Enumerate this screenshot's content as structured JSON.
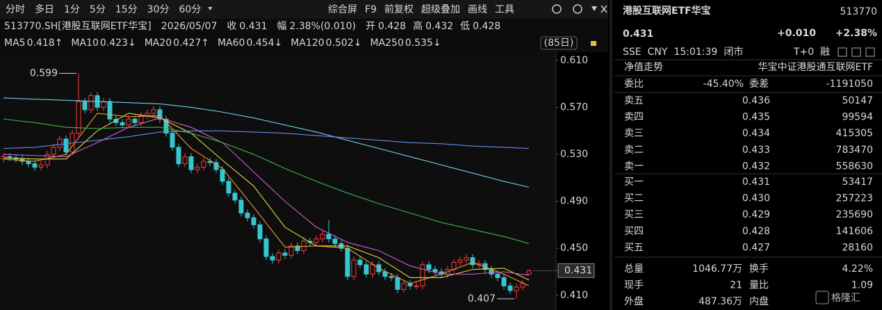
{
  "toolbar": {
    "periods": [
      "分时",
      "多日",
      "1分",
      "5分",
      "15分",
      "30分",
      "60分"
    ],
    "tools": [
      "综合屏",
      "F9",
      "前复权",
      "超级叠加",
      "画线",
      "工具"
    ]
  },
  "info": {
    "symbol": "513770.SH[港股互联网ETF华宝]",
    "date": "2026/05/07",
    "close_label": "收",
    "close": "0.431",
    "change_label": "幅",
    "change": "2.38%(0.010)",
    "open_label": "开",
    "open": "0.428",
    "high_label": "高",
    "high": "0.432",
    "low_label": "低",
    "low": "0.428"
  },
  "chart_data": {
    "type": "candlestick",
    "period_label": "(85日)",
    "ylim": [
      0.401,
      0.62
    ],
    "yticks": [
      {
        "value": 0.61,
        "label": "0.610"
      },
      {
        "value": 0.57,
        "label": "0.570"
      },
      {
        "value": 0.53,
        "label": "0.530"
      },
      {
        "value": 0.49,
        "label": "0.490"
      },
      {
        "value": 0.45,
        "label": "0.450"
      },
      {
        "value": 0.41,
        "label": "0.410"
      }
    ],
    "up_color": "#ff3a3a",
    "down_color": "#35c6d0",
    "open": [
      0.526,
      0.528,
      0.527,
      0.526,
      0.524,
      0.522,
      0.519,
      0.521,
      0.53,
      0.536,
      0.543,
      0.532,
      0.548,
      0.575,
      0.568,
      0.58,
      0.57,
      0.575,
      0.56,
      0.557,
      0.555,
      0.56,
      0.557,
      0.563,
      0.565,
      0.568,
      0.56,
      0.548,
      0.536,
      0.522,
      0.528,
      0.517,
      0.519,
      0.524,
      0.523,
      0.517,
      0.507,
      0.497,
      0.491,
      0.48,
      0.476,
      0.47,
      0.458,
      0.443,
      0.44,
      0.446,
      0.444,
      0.452,
      0.448,
      0.456,
      0.455,
      0.458,
      0.462,
      0.458,
      0.454,
      0.45,
      0.426,
      0.44,
      0.436,
      0.428,
      0.436,
      0.43,
      0.426,
      0.425,
      0.415,
      0.42,
      0.418,
      0.418,
      0.436,
      0.432,
      0.43,
      0.428,
      0.432,
      0.438,
      0.44,
      0.442,
      0.436,
      0.437,
      0.432,
      0.428,
      0.425,
      0.418,
      0.414,
      0.417,
      0.428
    ],
    "high": [
      0.531,
      0.531,
      0.53,
      0.529,
      0.527,
      0.525,
      0.524,
      0.533,
      0.539,
      0.546,
      0.546,
      0.551,
      0.599,
      0.578,
      0.583,
      0.583,
      0.578,
      0.578,
      0.563,
      0.56,
      0.563,
      0.563,
      0.566,
      0.568,
      0.571,
      0.571,
      0.563,
      0.551,
      0.539,
      0.531,
      0.531,
      0.522,
      0.527,
      0.527,
      0.526,
      0.52,
      0.51,
      0.5,
      0.494,
      0.483,
      0.479,
      0.473,
      0.461,
      0.446,
      0.449,
      0.449,
      0.455,
      0.455,
      0.459,
      0.459,
      0.461,
      0.465,
      0.474,
      0.461,
      0.457,
      0.453,
      0.443,
      0.443,
      0.439,
      0.439,
      0.439,
      0.433,
      0.429,
      0.428,
      0.423,
      0.423,
      0.421,
      0.439,
      0.439,
      0.435,
      0.433,
      0.435,
      0.441,
      0.443,
      0.445,
      0.445,
      0.44,
      0.44,
      0.435,
      0.431,
      0.428,
      0.421,
      0.42,
      0.423,
      0.432
    ],
    "low": [
      0.523,
      0.524,
      0.523,
      0.521,
      0.519,
      0.516,
      0.516,
      0.518,
      0.527,
      0.533,
      0.529,
      0.529,
      0.545,
      0.565,
      0.565,
      0.567,
      0.567,
      0.557,
      0.554,
      0.552,
      0.552,
      0.554,
      0.554,
      0.56,
      0.562,
      0.557,
      0.545,
      0.533,
      0.519,
      0.519,
      0.514,
      0.514,
      0.516,
      0.52,
      0.514,
      0.504,
      0.494,
      0.488,
      0.477,
      0.473,
      0.467,
      0.455,
      0.44,
      0.437,
      0.437,
      0.441,
      0.441,
      0.445,
      0.445,
      0.452,
      0.452,
      0.455,
      0.455,
      0.451,
      0.447,
      0.423,
      0.423,
      0.433,
      0.425,
      0.425,
      0.427,
      0.423,
      0.422,
      0.412,
      0.412,
      0.415,
      0.415,
      0.415,
      0.429,
      0.427,
      0.425,
      0.425,
      0.429,
      0.435,
      0.437,
      0.433,
      0.433,
      0.429,
      0.425,
      0.422,
      0.415,
      0.411,
      0.407,
      0.414,
      0.428
    ],
    "close": [
      0.528,
      0.527,
      0.526,
      0.524,
      0.522,
      0.519,
      0.521,
      0.53,
      0.536,
      0.543,
      0.532,
      0.548,
      0.575,
      0.568,
      0.58,
      0.57,
      0.575,
      0.56,
      0.557,
      0.555,
      0.56,
      0.557,
      0.563,
      0.565,
      0.568,
      0.56,
      0.548,
      0.536,
      0.522,
      0.528,
      0.517,
      0.519,
      0.524,
      0.523,
      0.517,
      0.507,
      0.497,
      0.491,
      0.48,
      0.476,
      0.47,
      0.458,
      0.443,
      0.44,
      0.446,
      0.444,
      0.452,
      0.448,
      0.456,
      0.455,
      0.458,
      0.462,
      0.458,
      0.454,
      0.45,
      0.426,
      0.44,
      0.436,
      0.428,
      0.436,
      0.43,
      0.426,
      0.425,
      0.415,
      0.42,
      0.418,
      0.418,
      0.436,
      0.432,
      0.43,
      0.428,
      0.432,
      0.438,
      0.44,
      0.442,
      0.436,
      0.437,
      0.432,
      0.428,
      0.425,
      0.418,
      0.414,
      0.417,
      0.42,
      0.431
    ],
    "ma_x": [
      0,
      5,
      10,
      15,
      20,
      25,
      30,
      35,
      40,
      45,
      50,
      55,
      60,
      65,
      70,
      75,
      80,
      84
    ],
    "series": [
      {
        "name": "MA5",
        "color": "#f0a030",
        "values": [
          0.526,
          0.524,
          0.53,
          0.565,
          0.562,
          0.563,
          0.535,
          0.518,
          0.485,
          0.451,
          0.452,
          0.45,
          0.433,
          0.42,
          0.428,
          0.438,
          0.428,
          0.418
        ],
        "last": {
          "value": 0.418,
          "label": "0.418↑"
        }
      },
      {
        "name": "MA10",
        "color": "#e8d840",
        "values": [
          0.527,
          0.526,
          0.526,
          0.55,
          0.565,
          0.561,
          0.548,
          0.525,
          0.503,
          0.468,
          0.452,
          0.452,
          0.442,
          0.425,
          0.425,
          0.432,
          0.433,
          0.423
        ],
        "last": {
          "value": 0.423,
          "label": "0.423↓"
        }
      },
      {
        "name": "MA20",
        "color": "#d65fd6",
        "values": [
          0.53,
          0.529,
          0.528,
          0.54,
          0.553,
          0.561,
          0.553,
          0.54,
          0.515,
          0.49,
          0.468,
          0.455,
          0.448,
          0.435,
          0.428,
          0.428,
          0.43,
          0.427
        ],
        "last": {
          "value": 0.427,
          "label": "0.427↑"
        }
      },
      {
        "name": "MA60",
        "color": "#3cb54a",
        "values": [
          0.56,
          0.557,
          0.553,
          0.552,
          0.553,
          0.553,
          0.548,
          0.54,
          0.53,
          0.518,
          0.507,
          0.497,
          0.488,
          0.48,
          0.472,
          0.466,
          0.46,
          0.454
        ],
        "last": {
          "value": 0.454,
          "label": "0.454↓"
        }
      },
      {
        "name": "MA120",
        "color": "#6fd0e8",
        "values": [
          0.578,
          0.577,
          0.576,
          0.575,
          0.574,
          0.573,
          0.57,
          0.566,
          0.561,
          0.555,
          0.549,
          0.542,
          0.535,
          0.528,
          0.521,
          0.514,
          0.507,
          0.502
        ],
        "last": {
          "value": 0.502,
          "label": "0.502↓"
        }
      },
      {
        "name": "MA250",
        "color": "#6a8cf0",
        "values": [
          0.535,
          0.536,
          0.539,
          0.542,
          0.545,
          0.549,
          0.55,
          0.55,
          0.549,
          0.548,
          0.546,
          0.544,
          0.542,
          0.54,
          0.539,
          0.537,
          0.536,
          0.535
        ],
        "last": {
          "value": 0.535,
          "label": "0.535↓"
        }
      }
    ],
    "annotations": [
      {
        "value": 0.599,
        "label": "0.599"
      },
      {
        "value": 0.407,
        "label": "0.407"
      }
    ],
    "last_price": {
      "value": 0.431,
      "label": "0.431"
    }
  },
  "quote": {
    "name": "港股互联网ETF华宝",
    "code": "513770",
    "price": "0.431",
    "change": "+0.010",
    "pct": "+2.38%",
    "status": [
      "SSE",
      "CNY",
      "15:01:39",
      "闭市"
    ],
    "t0": "T+0",
    "margin": "融",
    "nav_label": "净值走势",
    "index_name": "华宝中证港股通互联网ETF",
    "ratio_label": "委比",
    "ratio": "-45.40%",
    "diff_label": "委差",
    "diff": "-1191050",
    "asks": [
      [
        "卖五",
        "0.436",
        "50147"
      ],
      [
        "卖四",
        "0.435",
        "99594"
      ],
      [
        "卖三",
        "0.434",
        "415305"
      ],
      [
        "卖二",
        "0.433",
        "783470"
      ],
      [
        "卖一",
        "0.432",
        "558630"
      ]
    ],
    "bids": [
      [
        "买一",
        "0.431",
        "53417"
      ],
      [
        "买二",
        "0.430",
        "257223"
      ],
      [
        "买三",
        "0.429",
        "235690"
      ],
      [
        "买四",
        "0.428",
        "141606"
      ],
      [
        "买五",
        "0.427",
        "28160"
      ]
    ],
    "stats": [
      [
        "总量",
        "1046.77万",
        "换手",
        "4.22%"
      ],
      [
        "现手",
        "21",
        "量比",
        "1.09"
      ],
      [
        "外盘",
        "487.36万",
        "内盘"
      ]
    ],
    "watermark": "格隆汇"
  }
}
